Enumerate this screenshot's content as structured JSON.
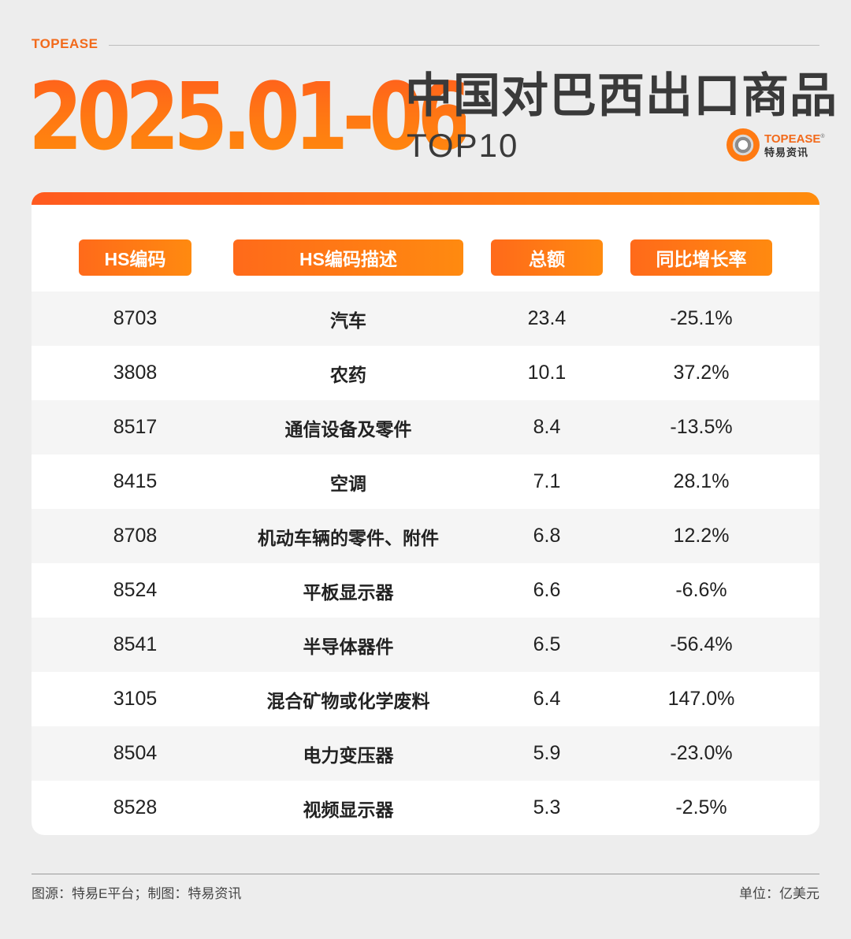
{
  "brand_top": "TOPEASE",
  "header": {
    "period": "2025.01-06",
    "title": "中国对巴西出口商品",
    "subtitle": "TOP10"
  },
  "logo": {
    "en": "TOPEASE",
    "registered": "®",
    "cn": "特易资讯"
  },
  "colors": {
    "accent": "#ff6a1a",
    "accent_end": "#ff8c0e",
    "title_text": "#3a3a3a",
    "row_shade": "#f5f5f5"
  },
  "chart_data": {
    "type": "table",
    "columns": [
      "HS编码",
      "HS编码描述",
      "总额",
      "同比增长率"
    ],
    "rows": [
      {
        "hs": "8703",
        "desc": "汽车",
        "total": "23.4",
        "yoy": "-25.1%"
      },
      {
        "hs": "3808",
        "desc": "农药",
        "total": "10.1",
        "yoy": "37.2%"
      },
      {
        "hs": "8517",
        "desc": "通信设备及零件",
        "total": "8.4",
        "yoy": "-13.5%"
      },
      {
        "hs": "8415",
        "desc": "空调",
        "total": "7.1",
        "yoy": "28.1%"
      },
      {
        "hs": "8708",
        "desc": "机动车辆的零件、附件",
        "total": "6.8",
        "yoy": "12.2%"
      },
      {
        "hs": "8524",
        "desc": "平板显示器",
        "total": "6.6",
        "yoy": "-6.6%"
      },
      {
        "hs": "8541",
        "desc": "半导体器件",
        "total": "6.5",
        "yoy": "-56.4%"
      },
      {
        "hs": "3105",
        "desc": "混合矿物或化学废料",
        "total": "6.4",
        "yoy": "147.0%"
      },
      {
        "hs": "8504",
        "desc": "电力变压器",
        "total": "5.9",
        "yoy": "-23.0%"
      },
      {
        "hs": "8528",
        "desc": "视频显示器",
        "total": "5.3",
        "yoy": "-2.5%"
      }
    ]
  },
  "footer": {
    "source": "图源：特易E平台；制图：特易资讯",
    "unit": "单位：亿美元"
  }
}
